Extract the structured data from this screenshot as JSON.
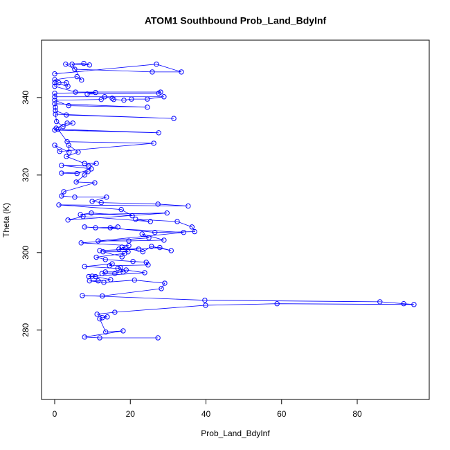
{
  "chart_data": {
    "type": "line",
    "title": "ATOM1 Southbound Prob_Land_BdyInf",
    "x_label": "Prob_Land_BdyInf",
    "y_label": "Theta (K)",
    "color": "#0000ff",
    "marker": "circle",
    "xlim": [
      -3.48,
      99.04
    ],
    "ylim": [
      262.1,
      354.8
    ],
    "xticks": [
      0,
      20,
      40,
      60,
      80
    ],
    "yticks": [
      280,
      300,
      320,
      340
    ],
    "x": [
      0,
      26.9,
      33.5,
      25.8,
      5.3,
      2.9,
      7.7,
      9.2,
      4.6,
      7.1,
      5.9,
      0,
      1.1,
      3.1,
      3.5,
      0,
      0,
      5.5,
      28.0,
      27.5,
      8.6,
      10.8,
      0,
      0,
      28.9,
      24.5,
      20.3,
      18.3,
      15.6,
      15.2,
      13.2,
      12.3,
      0,
      3.7,
      24.5,
      0,
      0.2,
      0.2,
      3.1,
      31.5,
      0.2,
      0.5,
      2.2,
      4.8,
      3.3,
      0.4,
      0,
      27.5,
      0.9,
      3.3,
      26.2,
      1.3,
      0,
      3.8,
      3.7,
      6.2,
      3.1,
      7.9,
      11.0,
      9.0,
      1.8,
      9.7,
      5.9,
      1.8,
      8.8,
      7.9,
      5.7,
      10.6,
      2.4,
      1.8,
      5.3,
      13.7,
      9.9,
      12.3,
      27.3,
      35.3,
      1.1,
      17.6,
      20.5,
      9.7,
      6.8,
      29.7,
      3.5,
      7.5,
      25.3,
      21.4,
      32.4,
      36.3,
      37.0,
      26.5,
      14.7,
      16.7,
      10.8,
      7.9,
      34.1,
      11.5,
      19.6,
      28.9,
      23.1,
      24.9,
      7.0,
      19.6,
      17.0,
      22.2,
      11.9,
      27.8,
      30.8,
      25.6,
      23.3,
      17.8,
      19.4,
      12.8,
      17.8,
      18.5,
      11.0,
      13.4,
      20.7,
      24.2,
      24.7,
      14.5,
      15.2,
      7.9,
      16.7,
      17.4,
      18.1,
      13.4,
      12.5,
      15.9,
      18.9,
      23.8,
      9.9,
      9.0,
      10.8,
      14.8,
      11.5,
      9.2,
      13.0,
      21.1,
      29.1,
      28.2,
      12.6,
      7.3,
      39.7,
      86.0,
      92.3,
      95.0,
      58.8,
      39.9,
      15.9,
      11.2,
      13.9,
      12.6,
      11.9,
      13.5,
      18.1,
      7.9,
      11.9,
      27.3
    ],
    "y": [
      346.1,
      348.6,
      346.6,
      346.6,
      347.3,
      348.6,
      348.8,
      348.4,
      348.6,
      344.5,
      345.4,
      344.6,
      343.8,
      343.8,
      342.9,
      343.8,
      342.9,
      341.4,
      341.4,
      341.1,
      340.9,
      341.3,
      341.1,
      340.2,
      340.2,
      339.6,
      339.6,
      339.3,
      339.5,
      339.8,
      340.2,
      339.5,
      339.3,
      337.9,
      337.5,
      338.4,
      337.5,
      336.6,
      335.5,
      334.6,
      335.7,
      333.8,
      332.5,
      333.4,
      333.4,
      332.1,
      331.6,
      330.9,
      331.8,
      328.6,
      328.2,
      326.1,
      327.7,
      325.9,
      327.7,
      325.9,
      324.8,
      323.0,
      323.0,
      322.3,
      322.5,
      321.6,
      320.4,
      320.5,
      320.9,
      320.0,
      318.2,
      318.0,
      315.7,
      314.6,
      314.3,
      314.3,
      313.2,
      312.9,
      312.5,
      312.0,
      312.3,
      311.1,
      309.5,
      310.2,
      309.8,
      310.2,
      308.4,
      309.3,
      308.0,
      308.6,
      308.0,
      306.6,
      305.4,
      305.2,
      306.4,
      306.6,
      306.4,
      306.6,
      305.2,
      303.0,
      303.0,
      303.2,
      304.8,
      303.8,
      302.5,
      301.8,
      300.9,
      300.9,
      300.5,
      301.3,
      300.5,
      301.6,
      300.2,
      301.4,
      300.2,
      300.2,
      298.9,
      299.8,
      298.8,
      298.2,
      297.7,
      297.5,
      296.8,
      296.6,
      297.1,
      296.4,
      295.9,
      296.1,
      295.0,
      295.0,
      294.6,
      294.6,
      295.5,
      294.8,
      293.9,
      293.8,
      293.8,
      293.0,
      292.7,
      292.7,
      292.3,
      292.9,
      292.1,
      290.7,
      288.8,
      288.9,
      287.7,
      287.3,
      286.8,
      286.6,
      286.8,
      286.4,
      284.6,
      284.1,
      283.4,
      283.2,
      282.9,
      279.5,
      279.8,
      278.2,
      278.0,
      278.0
    ]
  }
}
